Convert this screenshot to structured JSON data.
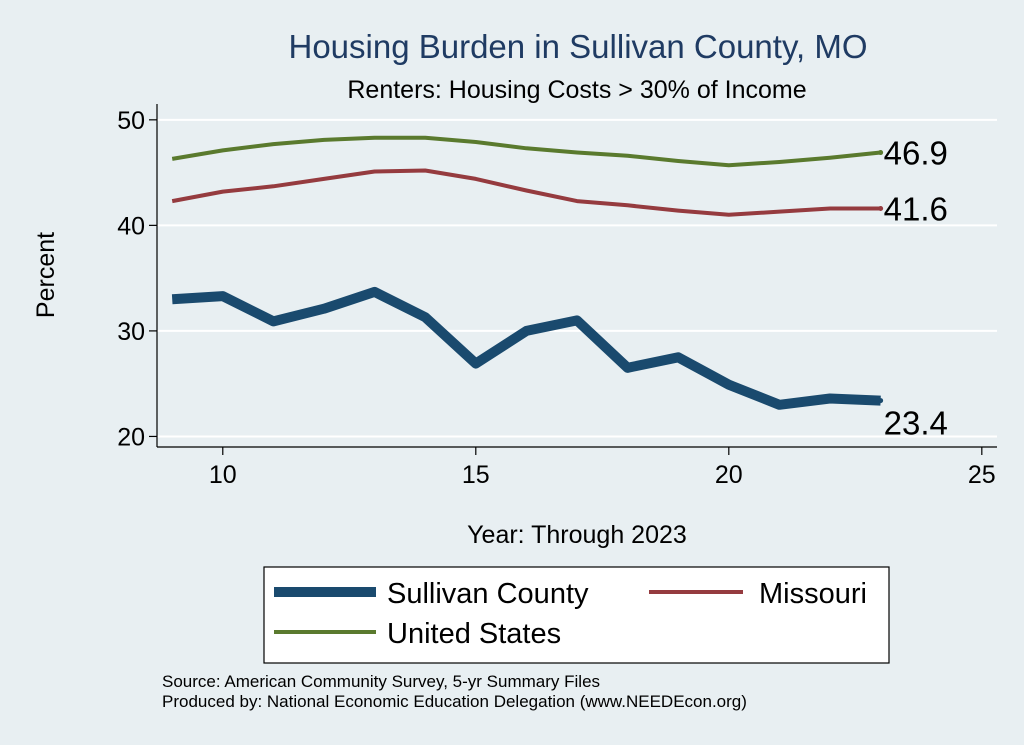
{
  "chart_data": {
    "type": "line",
    "title": "Housing Burden in Sullivan County, MO",
    "subtitle": "Renters: Housing Costs > 30% of Income",
    "xlabel": "Year: Through 2023",
    "ylabel": "Percent",
    "xlim": [
      8.7,
      25.3
    ],
    "ylim": [
      19,
      51.5
    ],
    "xticks": [
      10,
      15,
      20,
      25
    ],
    "yticks": [
      20,
      30,
      40,
      50
    ],
    "grid": true,
    "legend_position": "bottom",
    "series": [
      {
        "name": "Sullivan County",
        "color": "#1a4a6e",
        "width": "thick",
        "x": [
          9,
          10,
          11,
          12,
          13,
          14,
          15,
          16,
          17,
          18,
          19,
          20,
          21,
          22,
          23
        ],
        "values": [
          33.0,
          33.3,
          30.9,
          32.1,
          33.7,
          31.3,
          26.9,
          30.0,
          31.0,
          26.5,
          27.5,
          24.9,
          23.0,
          23.6,
          23.4
        ],
        "end_label": "23.4"
      },
      {
        "name": "Missouri",
        "color": "#953b3f",
        "width": "thin",
        "x": [
          9,
          10,
          11,
          12,
          13,
          14,
          15,
          16,
          17,
          18,
          19,
          20,
          21,
          22,
          23
        ],
        "values": [
          42.3,
          43.2,
          43.7,
          44.4,
          45.1,
          45.2,
          44.4,
          43.3,
          42.3,
          41.9,
          41.4,
          41.0,
          41.3,
          41.6,
          41.6
        ],
        "end_label": "41.6"
      },
      {
        "name": "United States",
        "color": "#5a7a2e",
        "width": "thin",
        "x": [
          9,
          10,
          11,
          12,
          13,
          14,
          15,
          16,
          17,
          18,
          19,
          20,
          21,
          22,
          23
        ],
        "values": [
          46.3,
          47.1,
          47.7,
          48.1,
          48.3,
          48.3,
          47.9,
          47.3,
          46.9,
          46.6,
          46.1,
          45.7,
          46.0,
          46.4,
          46.9
        ],
        "end_label": "46.9"
      }
    ]
  },
  "legend": {
    "items": [
      {
        "label": "Sullivan County"
      },
      {
        "label": "Missouri"
      },
      {
        "label": "United States"
      }
    ]
  },
  "footer": {
    "source": "Source: American Community Survey, 5-yr Summary Files",
    "produced": "Produced by: National Economic Education Delegation (www.NEEDEcon.org)"
  }
}
